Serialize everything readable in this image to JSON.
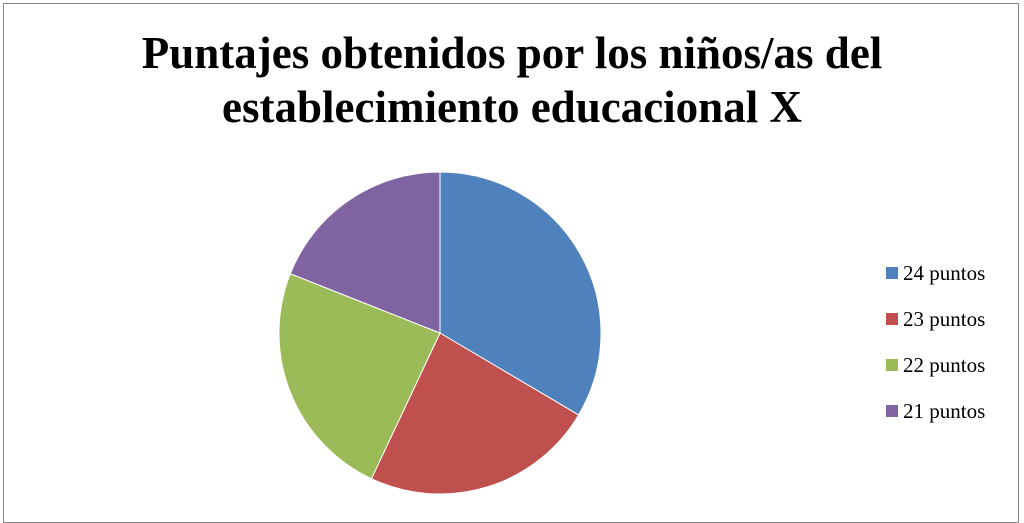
{
  "chart_data": {
    "type": "pie",
    "title_lines": [
      "Puntajes obtenidos por los niños/as del",
      "establecimiento educacional X"
    ],
    "categories": [
      "24 puntos",
      "23 puntos",
      "22 puntos",
      "21 puntos"
    ],
    "values": [
      33.5,
      23.5,
      24.0,
      19.0
    ],
    "colors": [
      "#4F81BD",
      "#C0504D",
      "#9BBB59",
      "#8064A2"
    ],
    "legend_position": "right",
    "start_angle": "top",
    "direction": "clockwise"
  }
}
